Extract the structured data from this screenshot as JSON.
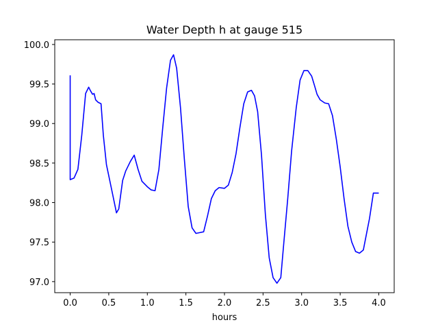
{
  "chart_data": {
    "type": "line",
    "title": "Water Depth h at gauge 515",
    "xlabel": "hours",
    "ylabel": "",
    "xlim": [
      -0.2,
      4.2
    ],
    "ylim": [
      96.86,
      100.06
    ],
    "xticks": [
      0.0,
      0.5,
      1.0,
      1.5,
      2.0,
      2.5,
      3.0,
      3.5,
      4.0
    ],
    "xtick_labels": [
      "0.0",
      "0.5",
      "1.0",
      "1.5",
      "2.0",
      "2.5",
      "3.0",
      "3.5",
      "4.0"
    ],
    "yticks": [
      97.0,
      97.5,
      98.0,
      98.5,
      99.0,
      99.5,
      100.0
    ],
    "ytick_labels": [
      "97.0",
      "97.5",
      "98.0",
      "98.5",
      "99.0",
      "99.5",
      "100.0"
    ],
    "grid": false,
    "series": [
      {
        "color": "#0000ff",
        "x": [
          0.0,
          0.0,
          0.05,
          0.1,
          0.15,
          0.2,
          0.24,
          0.26,
          0.29,
          0.31,
          0.33,
          0.36,
          0.4,
          0.43,
          0.47,
          0.53,
          0.6,
          0.63,
          0.68,
          0.72,
          0.78,
          0.83,
          0.88,
          0.93,
          1.0,
          1.05,
          1.1,
          1.15,
          1.2,
          1.25,
          1.3,
          1.34,
          1.38,
          1.43,
          1.48,
          1.53,
          1.58,
          1.63,
          1.68,
          1.73,
          1.78,
          1.83,
          1.88,
          1.93,
          2.0,
          2.05,
          2.1,
          2.15,
          2.2,
          2.25,
          2.3,
          2.35,
          2.39,
          2.43,
          2.48,
          2.53,
          2.58,
          2.63,
          2.68,
          2.73,
          2.77,
          2.82,
          2.87,
          2.93,
          2.98,
          3.03,
          3.08,
          3.13,
          3.17,
          3.2,
          3.24,
          3.3,
          3.35,
          3.4,
          3.45,
          3.5,
          3.55,
          3.6,
          3.65,
          3.7,
          3.75,
          3.8,
          3.83,
          3.88,
          3.93,
          3.97,
          4.0
        ],
        "y": [
          99.61,
          98.29,
          98.31,
          98.42,
          98.85,
          99.38,
          99.46,
          99.42,
          99.37,
          99.38,
          99.3,
          99.27,
          99.25,
          98.85,
          98.48,
          98.2,
          97.87,
          97.92,
          98.28,
          98.4,
          98.52,
          98.6,
          98.42,
          98.27,
          98.2,
          98.16,
          98.15,
          98.42,
          98.95,
          99.45,
          99.8,
          99.87,
          99.7,
          99.2,
          98.55,
          97.95,
          97.68,
          97.61,
          97.62,
          97.63,
          97.83,
          98.05,
          98.15,
          98.19,
          98.18,
          98.22,
          98.38,
          98.62,
          98.95,
          99.25,
          99.4,
          99.42,
          99.35,
          99.15,
          98.6,
          97.85,
          97.3,
          97.05,
          96.98,
          97.05,
          97.5,
          98.05,
          98.65,
          99.2,
          99.55,
          99.67,
          99.67,
          99.6,
          99.47,
          99.37,
          99.3,
          99.26,
          99.25,
          99.1,
          98.8,
          98.45,
          98.05,
          97.7,
          97.5,
          97.38,
          97.36,
          97.4,
          97.55,
          97.8,
          98.12,
          98.12,
          98.12
        ]
      }
    ]
  }
}
